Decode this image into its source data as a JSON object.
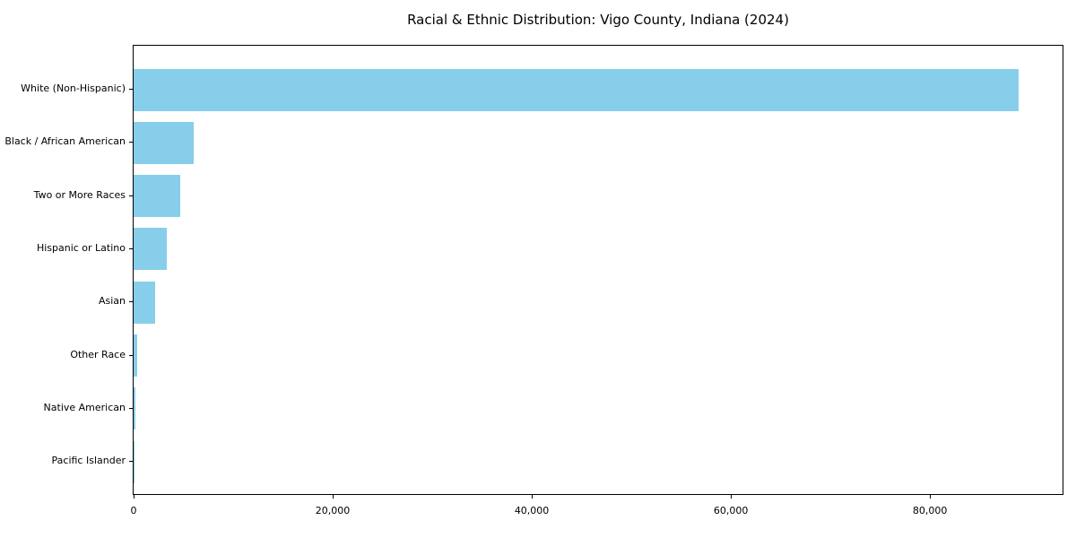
{
  "chart_data": {
    "type": "bar",
    "orientation": "horizontal",
    "title": "Racial & Ethnic Distribution: Vigo County, Indiana (2024)",
    "categories": [
      "White (Non-Hispanic)",
      "Black / African American",
      "Two or More Races",
      "Hispanic or Latino",
      "Asian",
      "Other Race",
      "Native American",
      "Pacific Islander"
    ],
    "values": [
      88900,
      6000,
      4700,
      3300,
      2150,
      400,
      150,
      40
    ],
    "xlabel": "",
    "ylabel": "",
    "xlim": [
      0,
      93500
    ],
    "x_ticks": [
      0,
      20000,
      40000,
      60000,
      80000
    ],
    "x_tick_labels": [
      "0",
      "20,000",
      "40,000",
      "60,000",
      "80,000"
    ],
    "bar_color": "#87CEEB",
    "background_color": "#ffffff",
    "axis_color": "#000000",
    "grid": false,
    "legend": null
  }
}
